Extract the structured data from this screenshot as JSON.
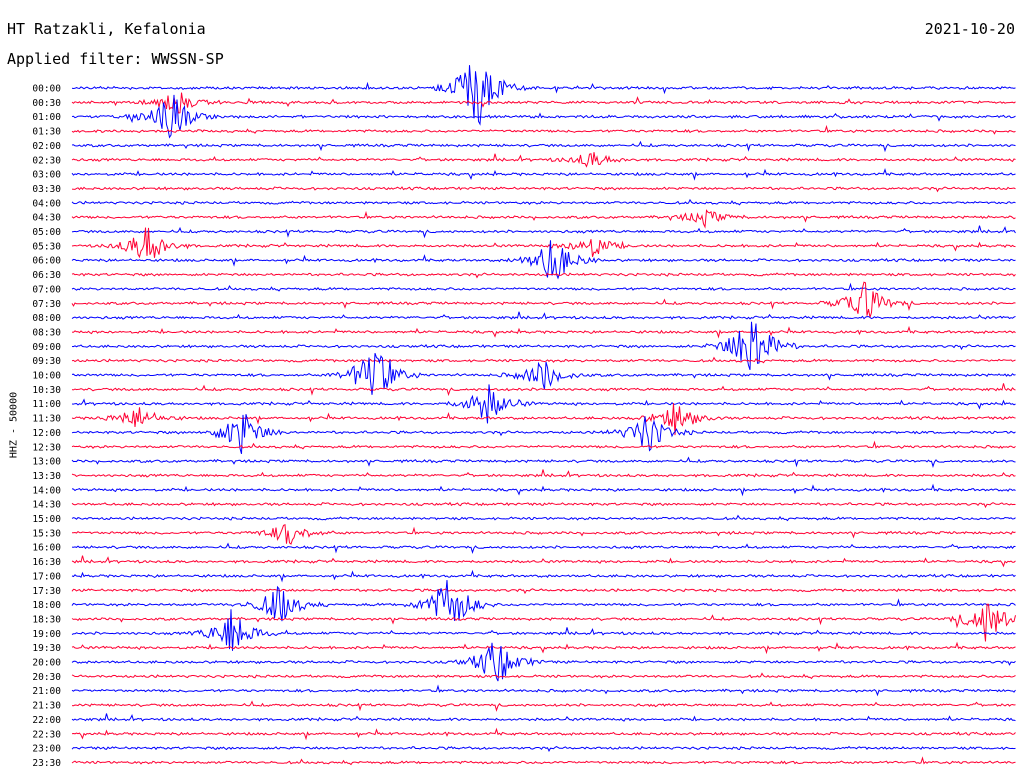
{
  "header": {
    "station": "HT Ratzakli, Kefalonia",
    "date": "2021-10-20",
    "filter": "Applied filter: WWSSN-SP"
  },
  "axis": {
    "ylabel": "HHZ - 50000"
  },
  "colors": {
    "trace_a": "#0000ff",
    "trace_b": "#ff0033"
  },
  "chart_data": {
    "type": "line",
    "title": "HT Ratzakli, Kefalonia",
    "date": "2021-10-20",
    "filter": "WWSSN-SP",
    "ylabel": "HHZ - 50000",
    "row_labels": [
      "00:00",
      "00:30",
      "01:00",
      "01:30",
      "02:00",
      "02:30",
      "03:00",
      "03:30",
      "04:00",
      "04:30",
      "05:00",
      "05:30",
      "06:00",
      "06:30",
      "07:00",
      "07:30",
      "08:00",
      "08:30",
      "09:00",
      "09:30",
      "10:00",
      "10:30",
      "11:00",
      "11:30",
      "12:00",
      "12:30",
      "13:00",
      "13:30",
      "14:00",
      "14:30",
      "15:00",
      "15:30",
      "16:00",
      "16:30",
      "17:00",
      "17:30",
      "18:00",
      "18:30",
      "19:00",
      "19:30",
      "20:00",
      "20:30",
      "21:00",
      "21:30",
      "22:00",
      "22:30",
      "23:00",
      "23:30"
    ],
    "series_colors": [
      "#0000ff",
      "#ff0033"
    ],
    "events": [
      {
        "row": 0,
        "t": 0.43,
        "amp": 5
      },
      {
        "row": 1,
        "t": 0.11,
        "amp": 1.5
      },
      {
        "row": 2,
        "t": 0.105,
        "amp": 3
      },
      {
        "row": 5,
        "t": 0.55,
        "amp": 1
      },
      {
        "row": 9,
        "t": 0.67,
        "amp": 1
      },
      {
        "row": 11,
        "t": 0.08,
        "amp": 2.5
      },
      {
        "row": 12,
        "t": 0.51,
        "amp": 3
      },
      {
        "row": 11,
        "t": 0.55,
        "amp": 1.5
      },
      {
        "row": 15,
        "t": 0.84,
        "amp": 2.5
      },
      {
        "row": 18,
        "t": 0.72,
        "amp": 5
      },
      {
        "row": 20,
        "t": 0.32,
        "amp": 4
      },
      {
        "row": 20,
        "t": 0.5,
        "amp": 2
      },
      {
        "row": 22,
        "t": 0.44,
        "amp": 2.5
      },
      {
        "row": 23,
        "t": 0.07,
        "amp": 1.5
      },
      {
        "row": 23,
        "t": 0.64,
        "amp": 2
      },
      {
        "row": 24,
        "t": 0.18,
        "amp": 3
      },
      {
        "row": 24,
        "t": 0.61,
        "amp": 2.5
      },
      {
        "row": 31,
        "t": 0.23,
        "amp": 1.5
      },
      {
        "row": 36,
        "t": 0.22,
        "amp": 2.5
      },
      {
        "row": 36,
        "t": 0.4,
        "amp": 4
      },
      {
        "row": 37,
        "t": 0.97,
        "amp": 3
      },
      {
        "row": 38,
        "t": 0.17,
        "amp": 3
      },
      {
        "row": 40,
        "t": 0.45,
        "amp": 3
      }
    ]
  }
}
